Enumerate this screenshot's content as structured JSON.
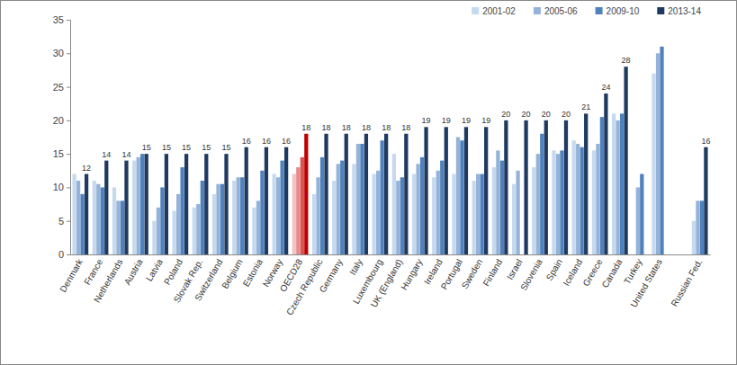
{
  "chart_data": {
    "type": "bar",
    "categories": [
      "Denmark",
      "France",
      "Netherlands",
      "Austria",
      "Latvia",
      "Poland",
      "Slovak Rep.",
      "Switzerland",
      "Belgium",
      "Estonia",
      "Norway",
      "OECD28",
      "Czech Republic",
      "Germany",
      "Italy",
      "Luxembourg",
      "UK (England)",
      "Hungary",
      "Ireland",
      "Portugal",
      "Sweden",
      "Finland",
      "Israel",
      "Slovenia",
      "Spain",
      "Iceland",
      "Greece",
      "Canada",
      "Turkey",
      "United States",
      null,
      "Russian Fed."
    ],
    "series": [
      {
        "name": "2001-02",
        "color": "#c6d9ef",
        "colors": [
          "#c6d9ef",
          "#c6d9ef",
          "#c6d9ef",
          "#c6d9ef",
          "#c6d9ef",
          "#c6d9ef",
          "#c6d9ef",
          "#c6d9ef",
          "#c6d9ef",
          "#c6d9ef",
          "#c6d9ef",
          "#f4c2c2",
          "#c6d9ef",
          "#c6d9ef",
          "#c6d9ef",
          "#c6d9ef",
          "#c6d9ef",
          "#c6d9ef",
          "#c6d9ef",
          "#c6d9ef",
          "#c6d9ef",
          "#c6d9ef",
          "#c6d9ef",
          "#c6d9ef",
          "#c6d9ef",
          "#c6d9ef",
          "#c6d9ef",
          "#c6d9ef",
          "#c6d9ef",
          "#c6d9ef",
          "#c6d9ef",
          "#c6d9ef"
        ],
        "values": [
          12,
          11,
          10,
          14,
          5,
          6.5,
          7,
          9,
          11,
          7,
          12,
          12,
          9,
          11,
          13.5,
          12,
          15,
          12,
          11.5,
          12,
          11,
          13,
          10.5,
          13,
          15.5,
          17,
          15.5,
          21,
          null,
          27,
          null,
          5
        ]
      },
      {
        "name": "2005-06",
        "color": "#95b3d7",
        "colors": [
          "#95b3d7",
          "#95b3d7",
          "#95b3d7",
          "#95b3d7",
          "#95b3d7",
          "#95b3d7",
          "#95b3d7",
          "#95b3d7",
          "#95b3d7",
          "#95b3d7",
          "#95b3d7",
          "#e68a8a",
          "#95b3d7",
          "#95b3d7",
          "#95b3d7",
          "#95b3d7",
          "#95b3d7",
          "#95b3d7",
          "#95b3d7",
          "#95b3d7",
          "#95b3d7",
          "#95b3d7",
          "#95b3d7",
          "#95b3d7",
          "#95b3d7",
          "#95b3d7",
          "#95b3d7",
          "#95b3d7",
          "#95b3d7",
          "#95b3d7",
          "#95b3d7",
          "#95b3d7"
        ],
        "values": [
          11,
          10.5,
          8,
          14.5,
          7,
          9,
          7.5,
          10.5,
          11.5,
          8,
          11.5,
          13,
          11.5,
          13.5,
          16.5,
          12.5,
          11,
          13.5,
          12.5,
          17.5,
          12,
          15.5,
          12.5,
          15,
          15,
          16.5,
          16.5,
          20,
          10,
          30,
          null,
          8
        ]
      },
      {
        "name": "2009-10",
        "color": "#4f81bd",
        "colors": [
          "#4f81bd",
          "#4f81bd",
          "#4f81bd",
          "#4f81bd",
          "#4f81bd",
          "#4f81bd",
          "#4f81bd",
          "#4f81bd",
          "#4f81bd",
          "#4f81bd",
          "#4f81bd",
          "#d9534f",
          "#4f81bd",
          "#4f81bd",
          "#4f81bd",
          "#4f81bd",
          "#4f81bd",
          "#4f81bd",
          "#4f81bd",
          "#4f81bd",
          "#4f81bd",
          "#4f81bd",
          "#4f81bd",
          "#4f81bd",
          "#4f81bd",
          "#4f81bd",
          "#4f81bd",
          "#4f81bd",
          "#4f81bd",
          "#4f81bd",
          "#4f81bd",
          "#4f81bd"
        ],
        "values": [
          9,
          10,
          8,
          15,
          10,
          13,
          11,
          10.5,
          11.5,
          12.5,
          14,
          14.5,
          14.5,
          14,
          16.5,
          17,
          11.5,
          14.5,
          14,
          17,
          12,
          14,
          null,
          18,
          15.5,
          16,
          20.5,
          21,
          12,
          31,
          null,
          8
        ]
      },
      {
        "name": "2013-14",
        "color": "#1f3a60",
        "data_labels": true,
        "colors": [
          "#1f3a60",
          "#1f3a60",
          "#1f3a60",
          "#1f3a60",
          "#1f3a60",
          "#1f3a60",
          "#1f3a60",
          "#1f3a60",
          "#1f3a60",
          "#1f3a60",
          "#1f3a60",
          "#c00000",
          "#1f3a60",
          "#1f3a60",
          "#1f3a60",
          "#1f3a60",
          "#1f3a60",
          "#1f3a60",
          "#1f3a60",
          "#1f3a60",
          "#1f3a60",
          "#1f3a60",
          "#1f3a60",
          "#1f3a60",
          "#1f3a60",
          "#1f3a60",
          "#1f3a60",
          "#1f3a60",
          "#1f3a60",
          "#1f3a60",
          "#1f3a60",
          "#1f3a60"
        ],
        "values": [
          12,
          14,
          14,
          15,
          15,
          15,
          15,
          15,
          16,
          16,
          16,
          18,
          18,
          18,
          18,
          18,
          18,
          19,
          19,
          19,
          19,
          20,
          20,
          20,
          20,
          21,
          24,
          28,
          null,
          null,
          null,
          16
        ]
      }
    ],
    "ylim": [
      0,
      35
    ],
    "yticks": [
      0,
      5,
      10,
      15,
      20,
      25,
      30,
      35
    ],
    "grid": false,
    "legend": "top-right"
  }
}
